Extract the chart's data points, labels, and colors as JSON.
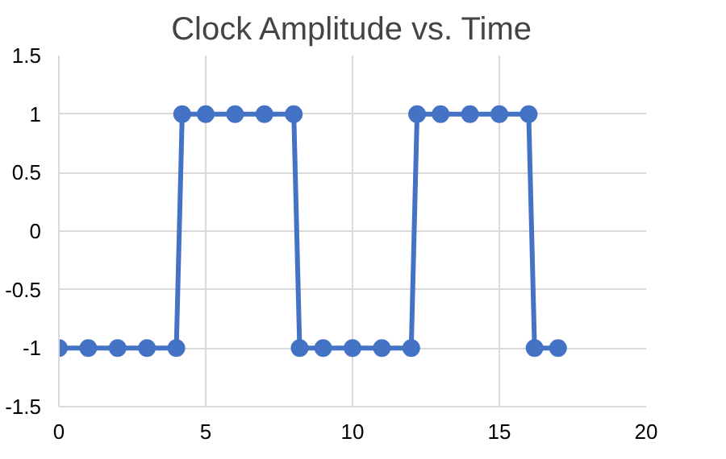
{
  "chart_data": {
    "type": "line",
    "title": "Clock Amplitude vs. Time",
    "x": [
      0,
      1,
      2,
      3,
      4,
      4.2,
      5,
      6,
      7,
      8,
      8.2,
      9,
      10,
      11,
      12,
      12.2,
      13,
      14,
      15,
      16,
      16.2,
      17
    ],
    "series": [
      {
        "color": "#4472c4",
        "values": [
          -1,
          -1,
          -1,
          -1,
          -1,
          1,
          1,
          1,
          1,
          1,
          -1,
          -1,
          -1,
          -1,
          -1,
          1,
          1,
          1,
          1,
          1,
          -1,
          -1
        ]
      }
    ],
    "xlim": [
      0,
      20
    ],
    "xticks": [
      0,
      5,
      10,
      15,
      20
    ],
    "ylim": [
      -1.5,
      1.5
    ],
    "yticks": [
      -1.5,
      -1,
      -0.5,
      0,
      0.5,
      1,
      1.5
    ],
    "grid": true,
    "marker": "circle",
    "line_style": "solid"
  }
}
